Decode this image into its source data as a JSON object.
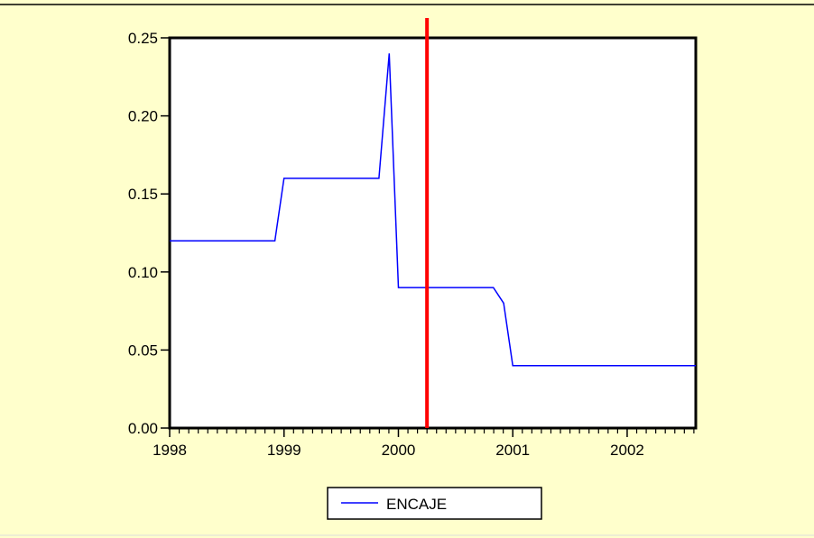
{
  "chart_data": {
    "type": "line",
    "title": "",
    "xlabel": "",
    "ylabel": "",
    "xlim": [
      1998,
      2002.6
    ],
    "ylim": [
      0,
      0.25
    ],
    "x_ticks": [
      "1998",
      "1999",
      "2000",
      "2001",
      "2002"
    ],
    "y_ticks": [
      "0.00",
      "0.05",
      "0.10",
      "0.15",
      "0.20",
      "0.25"
    ],
    "grid": false,
    "legend": "bottom-center",
    "series": [
      {
        "name": "ENCAJE",
        "color": "#0000ff",
        "points": [
          [
            1998.0,
            0.12
          ],
          [
            1998.92,
            0.12
          ],
          [
            1999.0,
            0.16
          ],
          [
            1999.83,
            0.16
          ],
          [
            1999.92,
            0.24
          ],
          [
            2000.0,
            0.09
          ],
          [
            2000.83,
            0.09
          ],
          [
            2000.92,
            0.08
          ],
          [
            2001.0,
            0.04
          ],
          [
            2002.6,
            0.04
          ]
        ]
      }
    ],
    "vertical_marker": {
      "x": 2000.25,
      "color": "#ff0000"
    },
    "colors": {
      "background": "#ffffcc",
      "plot_area": "#ffffff",
      "axis": "#000000"
    }
  }
}
